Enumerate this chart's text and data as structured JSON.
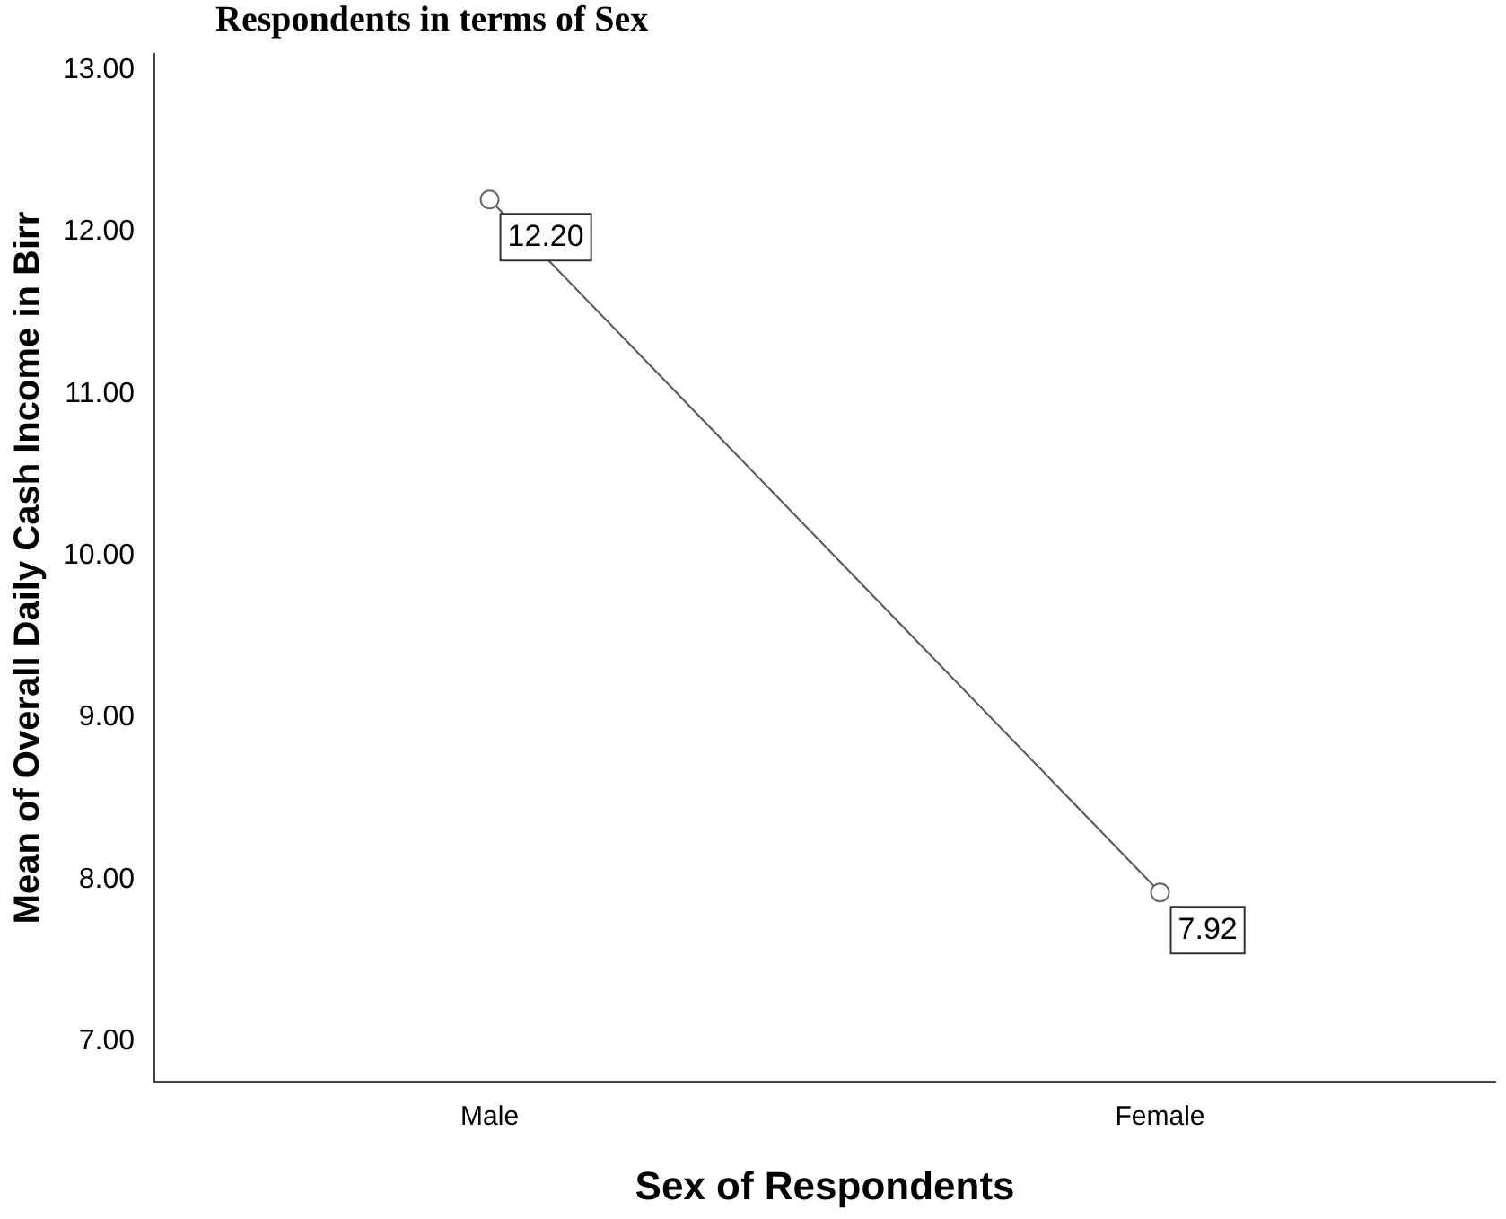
{
  "chart_data": {
    "type": "line",
    "title": "Respondents in terms of Sex",
    "xlabel": "Sex of Respondents",
    "ylabel": "Mean of Overall Daily Cash Income in Birr",
    "categories": [
      "Male",
      "Female"
    ],
    "series": [
      {
        "color": "#555555",
        "values": [
          12.2,
          7.92
        ],
        "value_labels": [
          "12.20",
          "7.92"
        ]
      }
    ],
    "ylim": [
      6.75,
      13.1
    ],
    "yticks": [
      {
        "value": 7,
        "label": "7.00"
      },
      {
        "value": 8,
        "label": "8.00"
      },
      {
        "value": 9,
        "label": "9.00"
      },
      {
        "value": 10,
        "label": "10.00"
      },
      {
        "value": 11,
        "label": "11.00"
      },
      {
        "value": 12,
        "label": "12.00"
      },
      {
        "value": 13,
        "label": "13.00"
      }
    ],
    "grid": false,
    "legend": false,
    "marker": "circle"
  }
}
